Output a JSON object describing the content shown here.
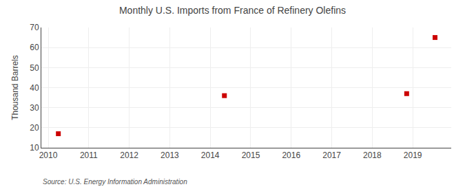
{
  "chart_data": {
    "type": "scatter",
    "title": "Monthly U.S. Imports from France of Refinery Olefins",
    "ylabel": "Thousand Barrels",
    "annotations": [
      "Source: U.S. Energy Information Administration"
    ],
    "x": [
      2010.25,
      2014.35,
      2018.85,
      2019.55
    ],
    "values": [
      17,
      36,
      37,
      65
    ],
    "color": "#cc0000",
    "marker": "square",
    "xlim": [
      2009.83,
      2019.95
    ],
    "ylim": [
      10,
      70
    ],
    "xticks": [
      2010,
      2011,
      2012,
      2013,
      2014,
      2015,
      2016,
      2017,
      2018,
      2019
    ],
    "yticks": [
      10,
      20,
      30,
      40,
      50,
      60,
      70
    ],
    "grid": true
  }
}
